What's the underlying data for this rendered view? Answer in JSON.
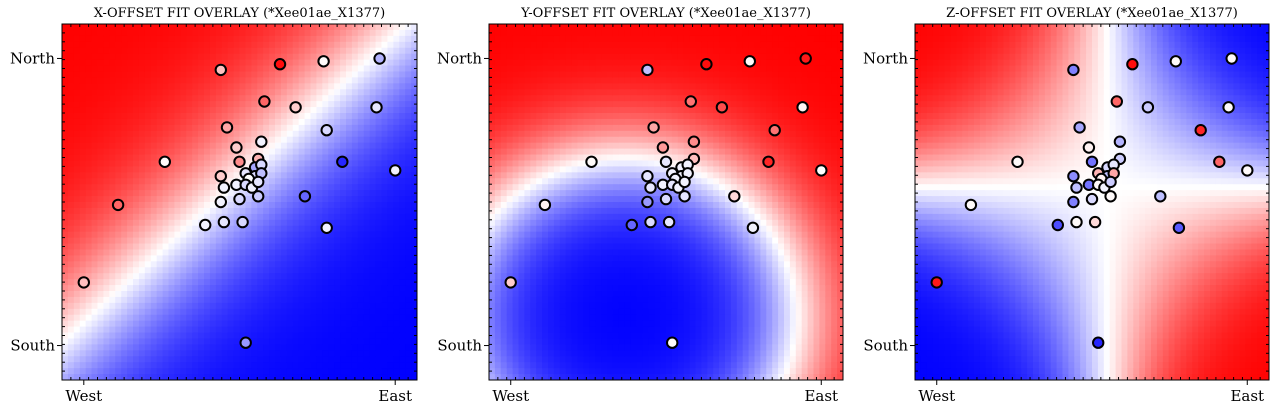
{
  "chart_data": [
    {
      "type": "heatmap",
      "title": "X-OFFSET FIT OVERLAY (*Xee01ae_X1377)",
      "xlabel": "",
      "ylabel": "",
      "x_tick_labels": [
        "West",
        "East"
      ],
      "y_tick_labels": [
        "North",
        "South"
      ],
      "xlim": [
        -0.07,
        1.07
      ],
      "ylim": [
        -0.12,
        1.12
      ],
      "grid": false,
      "colormap": [
        "#0000ff",
        "#ffffff",
        "#ff0000"
      ],
      "field": {
        "kind": "linear",
        "dx": -1.0,
        "dy": 1.0,
        "c": 0.42
      },
      "points": [
        {
          "x": 0.0,
          "y": 0.22,
          "v": 0.25
        },
        {
          "x": 0.11,
          "y": 0.49,
          "v": 0.6
        },
        {
          "x": 0.26,
          "y": 0.64,
          "v": 0.02
        },
        {
          "x": 0.44,
          "y": 0.96,
          "v": 0.25
        },
        {
          "x": 0.63,
          "y": 0.98,
          "v": 0.95
        },
        {
          "x": 0.77,
          "y": 0.99,
          "v": 0.02
        },
        {
          "x": 0.95,
          "y": 1.0,
          "v": -0.3
        },
        {
          "x": 0.58,
          "y": 0.85,
          "v": 0.6
        },
        {
          "x": 0.68,
          "y": 0.83,
          "v": 0.2
        },
        {
          "x": 0.94,
          "y": 0.83,
          "v": -0.1
        },
        {
          "x": 0.46,
          "y": 0.76,
          "v": 0.35
        },
        {
          "x": 0.49,
          "y": 0.69,
          "v": 0.2
        },
        {
          "x": 0.57,
          "y": 0.71,
          "v": -0.05
        },
        {
          "x": 0.78,
          "y": 0.75,
          "v": -0.15
        },
        {
          "x": 0.5,
          "y": 0.64,
          "v": 0.45
        },
        {
          "x": 0.56,
          "y": 0.65,
          "v": 0.3
        },
        {
          "x": 0.44,
          "y": 0.59,
          "v": 0.2
        },
        {
          "x": 0.52,
          "y": 0.6,
          "v": -0.1
        },
        {
          "x": 0.55,
          "y": 0.62,
          "v": -0.35
        },
        {
          "x": 0.57,
          "y": 0.63,
          "v": -0.15
        },
        {
          "x": 0.55,
          "y": 0.59,
          "v": -0.15
        },
        {
          "x": 0.57,
          "y": 0.6,
          "v": -0.25
        },
        {
          "x": 0.53,
          "y": 0.58,
          "v": 0.0
        },
        {
          "x": 0.49,
          "y": 0.56,
          "v": -0.05
        },
        {
          "x": 0.52,
          "y": 0.56,
          "v": -0.15
        },
        {
          "x": 0.45,
          "y": 0.55,
          "v": -0.05
        },
        {
          "x": 0.54,
          "y": 0.55,
          "v": -0.05
        },
        {
          "x": 0.56,
          "y": 0.57,
          "v": -0.1
        },
        {
          "x": 0.44,
          "y": 0.5,
          "v": -0.05
        },
        {
          "x": 0.5,
          "y": 0.51,
          "v": -0.15
        },
        {
          "x": 0.56,
          "y": 0.52,
          "v": -0.2
        },
        {
          "x": 0.39,
          "y": 0.42,
          "v": -0.05
        },
        {
          "x": 0.45,
          "y": 0.43,
          "v": -0.1
        },
        {
          "x": 0.51,
          "y": 0.43,
          "v": -0.15
        },
        {
          "x": 0.71,
          "y": 0.52,
          "v": -0.6
        },
        {
          "x": 0.83,
          "y": 0.64,
          "v": -0.85
        },
        {
          "x": 1.0,
          "y": 0.61,
          "v": -0.05
        },
        {
          "x": 0.78,
          "y": 0.41,
          "v": -0.05
        },
        {
          "x": 0.52,
          "y": 0.01,
          "v": -0.4
        }
      ]
    },
    {
      "type": "heatmap",
      "title": "Y-OFFSET FIT OVERLAY (*Xee01ae_X1377)",
      "xlabel": "",
      "ylabel": "",
      "x_tick_labels": [
        "West",
        "East"
      ],
      "y_tick_labels": [
        "North",
        "South"
      ],
      "xlim": [
        -0.07,
        1.07
      ],
      "ylim": [
        -0.12,
        1.12
      ],
      "grid": false,
      "colormap": [
        "#0000ff",
        "#ffffff",
        "#ff0000"
      ],
      "field": {
        "kind": "radial",
        "cx": 0.37,
        "cy": 0.1,
        "r0": 0.55,
        "scale": 0.45
      },
      "points": [
        {
          "x": 0.0,
          "y": 0.22,
          "v": 0.2
        },
        {
          "x": 0.11,
          "y": 0.49,
          "v": 0.05
        },
        {
          "x": 0.26,
          "y": 0.64,
          "v": 0.02
        },
        {
          "x": 0.44,
          "y": 0.96,
          "v": -0.25
        },
        {
          "x": 0.63,
          "y": 0.98,
          "v": 0.95
        },
        {
          "x": 0.77,
          "y": 0.99,
          "v": 0.02
        },
        {
          "x": 0.95,
          "y": 1.0,
          "v": 0.9
        },
        {
          "x": 0.58,
          "y": 0.85,
          "v": 0.55
        },
        {
          "x": 0.68,
          "y": 0.83,
          "v": 0.7
        },
        {
          "x": 0.94,
          "y": 0.83,
          "v": 0.05
        },
        {
          "x": 0.46,
          "y": 0.76,
          "v": 0.35
        },
        {
          "x": 0.49,
          "y": 0.69,
          "v": 0.4
        },
        {
          "x": 0.59,
          "y": 0.71,
          "v": 0.45
        },
        {
          "x": 0.85,
          "y": 0.75,
          "v": 0.55
        },
        {
          "x": 0.5,
          "y": 0.64,
          "v": -0.1
        },
        {
          "x": 0.59,
          "y": 0.65,
          "v": 0.25
        },
        {
          "x": 0.44,
          "y": 0.59,
          "v": -0.1
        },
        {
          "x": 0.52,
          "y": 0.6,
          "v": -0.05
        },
        {
          "x": 0.55,
          "y": 0.62,
          "v": -0.05
        },
        {
          "x": 0.57,
          "y": 0.63,
          "v": -0.05
        },
        {
          "x": 0.55,
          "y": 0.59,
          "v": -0.05
        },
        {
          "x": 0.57,
          "y": 0.6,
          "v": -0.05
        },
        {
          "x": 0.53,
          "y": 0.58,
          "v": -0.05
        },
        {
          "x": 0.49,
          "y": 0.56,
          "v": -0.05
        },
        {
          "x": 0.52,
          "y": 0.56,
          "v": -0.1
        },
        {
          "x": 0.45,
          "y": 0.55,
          "v": -0.1
        },
        {
          "x": 0.54,
          "y": 0.55,
          "v": -0.05
        },
        {
          "x": 0.56,
          "y": 0.57,
          "v": -0.05
        },
        {
          "x": 0.44,
          "y": 0.5,
          "v": -0.4
        },
        {
          "x": 0.5,
          "y": 0.51,
          "v": -0.15
        },
        {
          "x": 0.56,
          "y": 0.52,
          "v": -0.1
        },
        {
          "x": 0.39,
          "y": 0.42,
          "v": -0.6
        },
        {
          "x": 0.45,
          "y": 0.43,
          "v": -0.15
        },
        {
          "x": 0.51,
          "y": 0.43,
          "v": -0.1
        },
        {
          "x": 0.72,
          "y": 0.52,
          "v": 0.15
        },
        {
          "x": 0.83,
          "y": 0.64,
          "v": 0.85
        },
        {
          "x": 1.0,
          "y": 0.61,
          "v": 0.0
        },
        {
          "x": 0.78,
          "y": 0.41,
          "v": -0.05
        },
        {
          "x": 0.52,
          "y": 0.01,
          "v": 0.02
        }
      ]
    },
    {
      "type": "heatmap",
      "title": "Z-OFFSET FIT OVERLAY (*Xee01ae_X1377)",
      "xlabel": "",
      "ylabel": "",
      "x_tick_labels": [
        "West",
        "East"
      ],
      "y_tick_labels": [
        "North",
        "South"
      ],
      "xlim": [
        -0.07,
        1.07
      ],
      "ylim": [
        -0.12,
        1.12
      ],
      "grid": false,
      "colormap": [
        "#0000ff",
        "#ffffff",
        "#ff0000"
      ],
      "field": {
        "kind": "saddle",
        "cx": 0.55,
        "cy": 0.55,
        "s": 7.0
      },
      "points": [
        {
          "x": 0.0,
          "y": 0.22,
          "v": 0.9
        },
        {
          "x": 0.11,
          "y": 0.49,
          "v": 0.02
        },
        {
          "x": 0.26,
          "y": 0.64,
          "v": 0.02
        },
        {
          "x": 0.44,
          "y": 0.96,
          "v": -0.5
        },
        {
          "x": 0.63,
          "y": 0.98,
          "v": 0.95
        },
        {
          "x": 0.77,
          "y": 0.99,
          "v": 0.02
        },
        {
          "x": 0.95,
          "y": 1.0,
          "v": 0.02
        },
        {
          "x": 0.58,
          "y": 0.85,
          "v": 0.6
        },
        {
          "x": 0.68,
          "y": 0.83,
          "v": -0.2
        },
        {
          "x": 0.94,
          "y": 0.83,
          "v": 0.02
        },
        {
          "x": 0.46,
          "y": 0.76,
          "v": -0.35
        },
        {
          "x": 0.49,
          "y": 0.69,
          "v": 0.05
        },
        {
          "x": 0.59,
          "y": 0.71,
          "v": -0.3
        },
        {
          "x": 0.85,
          "y": 0.75,
          "v": 0.85
        },
        {
          "x": 0.5,
          "y": 0.64,
          "v": -0.55
        },
        {
          "x": 0.59,
          "y": 0.65,
          "v": -0.2
        },
        {
          "x": 0.44,
          "y": 0.59,
          "v": -0.45
        },
        {
          "x": 0.52,
          "y": 0.6,
          "v": 0.3
        },
        {
          "x": 0.55,
          "y": 0.62,
          "v": -0.15
        },
        {
          "x": 0.57,
          "y": 0.63,
          "v": -0.1
        },
        {
          "x": 0.55,
          "y": 0.59,
          "v": -0.25
        },
        {
          "x": 0.57,
          "y": 0.6,
          "v": 0.35
        },
        {
          "x": 0.53,
          "y": 0.58,
          "v": 0.05
        },
        {
          "x": 0.49,
          "y": 0.56,
          "v": -0.55
        },
        {
          "x": 0.52,
          "y": 0.56,
          "v": 0.02
        },
        {
          "x": 0.45,
          "y": 0.55,
          "v": -0.25
        },
        {
          "x": 0.54,
          "y": 0.55,
          "v": -0.05
        },
        {
          "x": 0.56,
          "y": 0.57,
          "v": -0.2
        },
        {
          "x": 0.44,
          "y": 0.5,
          "v": -0.5
        },
        {
          "x": 0.5,
          "y": 0.51,
          "v": -0.15
        },
        {
          "x": 0.56,
          "y": 0.52,
          "v": 0.02
        },
        {
          "x": 0.39,
          "y": 0.42,
          "v": -0.7
        },
        {
          "x": 0.45,
          "y": 0.43,
          "v": 0.02
        },
        {
          "x": 0.51,
          "y": 0.43,
          "v": 0.15
        },
        {
          "x": 0.72,
          "y": 0.52,
          "v": -0.25
        },
        {
          "x": 0.91,
          "y": 0.64,
          "v": 0.6
        },
        {
          "x": 1.0,
          "y": 0.61,
          "v": 0.02
        },
        {
          "x": 0.78,
          "y": 0.41,
          "v": -0.65
        },
        {
          "x": 0.52,
          "y": 0.01,
          "v": -0.85
        }
      ]
    }
  ]
}
